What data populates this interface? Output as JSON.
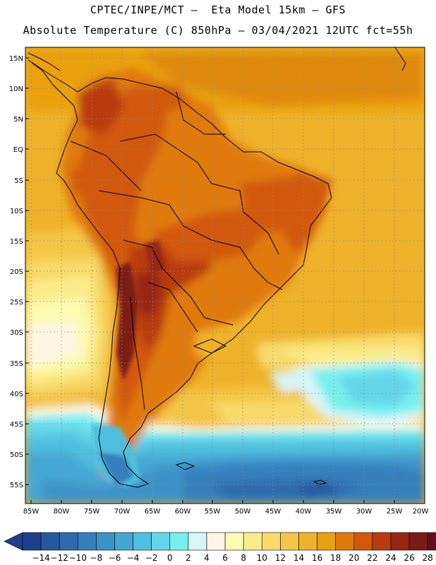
{
  "header": {
    "line1": "CPTEC/INPE/MCT –  Eta Model 15km – GFS",
    "line2": "Absolute Temperature (C) 850hPa – 03/04/2021 12UTC fct=55h"
  },
  "map": {
    "lat_labels": [
      "15N",
      "10N",
      "5N",
      "EQ",
      "5S",
      "10S",
      "15S",
      "20S",
      "25S",
      "30S",
      "35S",
      "40S",
      "45S",
      "50S",
      "55S"
    ],
    "lon_labels": [
      "85W",
      "80W",
      "75W",
      "70W",
      "65W",
      "60W",
      "55W",
      "50W",
      "45W",
      "40W",
      "35W",
      "30W",
      "25W",
      "20W"
    ],
    "grid": "dotted"
  },
  "colorbar": {
    "labels": [
      "-14",
      "-12",
      "-10",
      "-8",
      "-6",
      "-4",
      "-2",
      "0",
      "2",
      "4",
      "6",
      "8",
      "10",
      "12",
      "14",
      "16",
      "18",
      "20",
      "22",
      "24",
      "26",
      "28"
    ],
    "colors": [
      "#1f3f8e",
      "#27579f",
      "#2f6aae",
      "#357fbd",
      "#3c93c9",
      "#44a7d3",
      "#4fbfdf",
      "#63d6ea",
      "#78efef",
      "#d6f6f8",
      "#fff6e3",
      "#fdfab1",
      "#fbec8a",
      "#f8da6a",
      "#f4c647",
      "#efb22a",
      "#eaa10f",
      "#e07a0c",
      "#d2590a",
      "#b83b0a",
      "#972614",
      "#7c1a15",
      "#64101c"
    ],
    "low_arrow_color": "#1f3f8e",
    "high_arrow_color": "#64101c"
  }
}
